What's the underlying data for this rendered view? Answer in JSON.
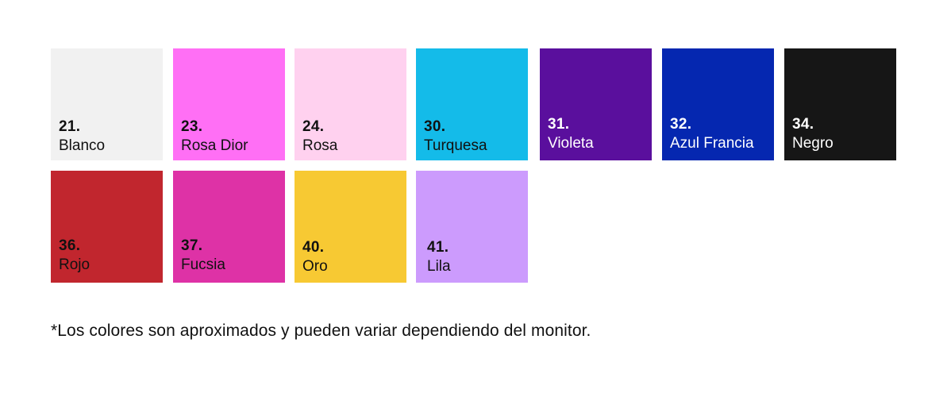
{
  "swatches": [
    {
      "number": "21.",
      "name": "Blanco",
      "color": "#f1f1f1"
    },
    {
      "number": "23.",
      "name": "Rosa Dior",
      "color": "#ff6ff5"
    },
    {
      "number": "24.",
      "name": "Rosa",
      "color": "#ffd1ef"
    },
    {
      "number": "30.",
      "name": "Turquesa",
      "color": "#14bbe9"
    },
    {
      "number": "31.",
      "name": "Violeta",
      "color": "#5a0f9d"
    },
    {
      "number": "32.",
      "name": "Azul Francia",
      "color": "#0527b0"
    },
    {
      "number": "34.",
      "name": "Negro",
      "color": "#161616"
    },
    {
      "number": "36.",
      "name": "Rojo",
      "color": "#c1262e"
    },
    {
      "number": "37.",
      "name": "Fucsia",
      "color": "#de32a6"
    },
    {
      "number": "40.",
      "name": "Oro",
      "color": "#f7c933"
    },
    {
      "number": "41.",
      "name": "Lila",
      "color": "#cc9bfd"
    }
  ],
  "note": "*Los colores son aproximados y pueden variar dependiendo del monitor."
}
